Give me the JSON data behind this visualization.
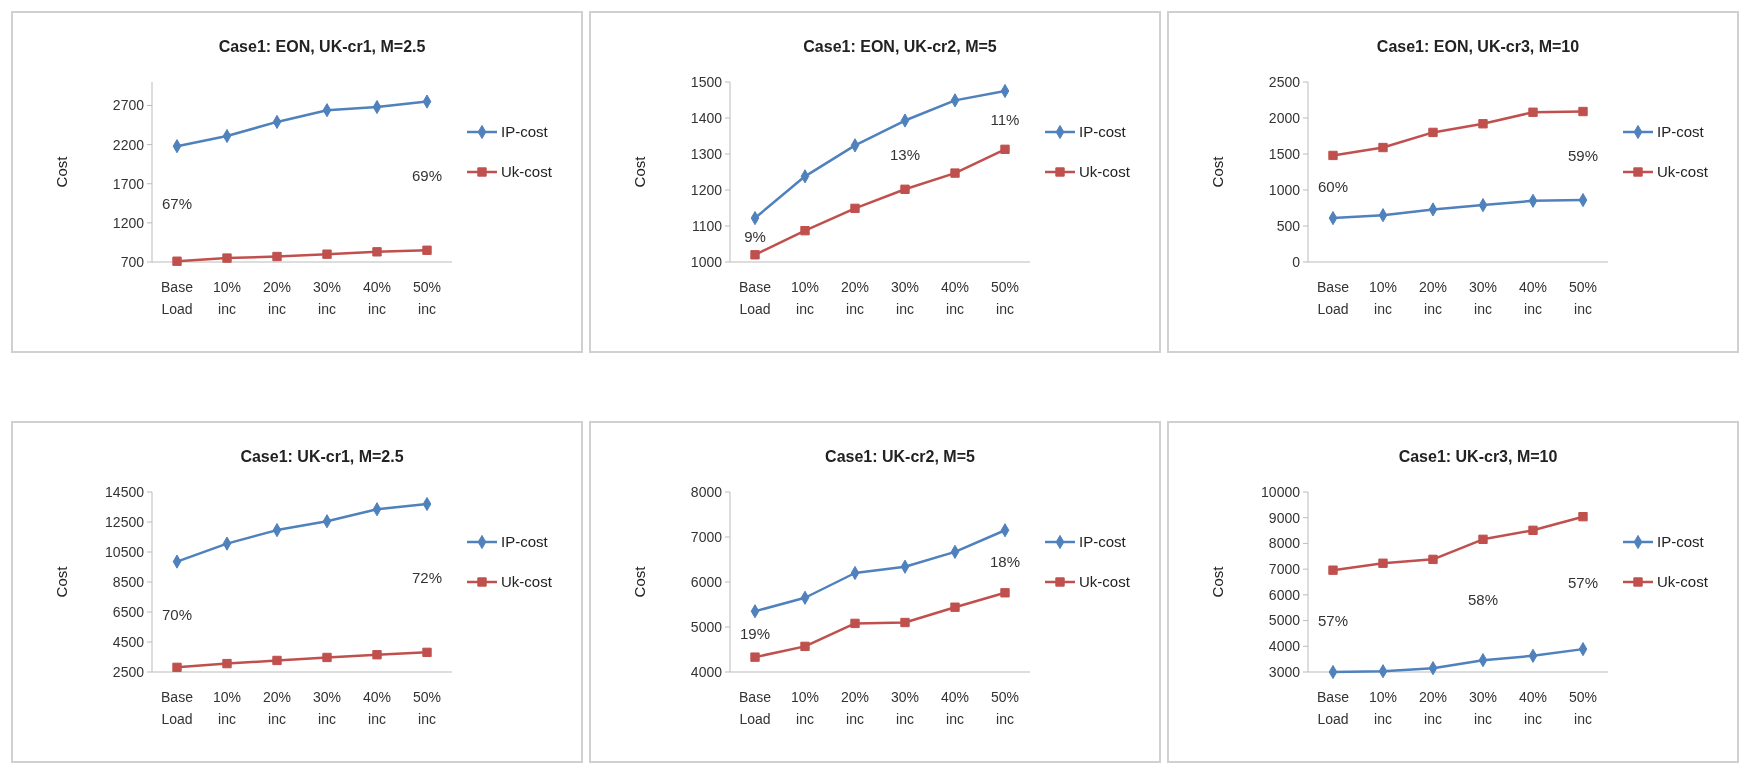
{
  "chart_data": [
    {
      "type": "line",
      "title": "Case1: EON, UK-cr1, M=2.5",
      "ylabel": "Cost",
      "categories": [
        "Base Load",
        "10% inc",
        "20% inc",
        "30% inc",
        "40% inc",
        "50% inc"
      ],
      "ylim": [
        700,
        3000
      ],
      "yticks": [
        700,
        1200,
        1700,
        2200,
        2700
      ],
      "grid": false,
      "legend": "right",
      "series": [
        {
          "name": "IP-cost",
          "color": "#4f81bd",
          "marker": "diamond",
          "values": [
            2180,
            2310,
            2490,
            2640,
            2680,
            2750
          ]
        },
        {
          "name": "Uk-cost",
          "color": "#c0504d",
          "marker": "square",
          "values": [
            710,
            750,
            770,
            800,
            830,
            850
          ]
        }
      ],
      "annotations": [
        "67%",
        "69%"
      ]
    },
    {
      "type": "line",
      "title": "Case1: EON, UK-cr2, M=5",
      "ylabel": "Cost",
      "categories": [
        "Base Load",
        "10% inc",
        "20% inc",
        "30% inc",
        "40% inc",
        "50% inc"
      ],
      "ylim": [
        1000,
        1500
      ],
      "yticks": [
        1000,
        1100,
        1200,
        1300,
        1400,
        1500
      ],
      "grid": false,
      "legend": "right",
      "series": [
        {
          "name": "IP-cost",
          "color": "#4f81bd",
          "marker": "diamond",
          "values": [
            1122,
            1238,
            1324,
            1393,
            1449,
            1475
          ]
        },
        {
          "name": "Uk-cost",
          "color": "#c0504d",
          "marker": "square",
          "values": [
            1020,
            1087,
            1149,
            1202,
            1247,
            1313
          ]
        }
      ],
      "annotations": [
        "9%",
        "13%",
        "11%"
      ]
    },
    {
      "type": "line",
      "title": "Case1: EON, UK-cr3, M=10",
      "ylabel": "Cost",
      "categories": [
        "Base Load",
        "10% inc",
        "20% inc",
        "30% inc",
        "40% inc",
        "50% inc"
      ],
      "ylim": [
        0,
        2500
      ],
      "yticks": [
        0,
        500,
        1000,
        1500,
        2000,
        2500
      ],
      "grid": false,
      "legend": "right",
      "series": [
        {
          "name": "IP-cost",
          "color": "#4f81bd",
          "marker": "diamond",
          "values": [
            610,
            650,
            730,
            790,
            850,
            860
          ]
        },
        {
          "name": "Uk-cost",
          "color": "#c0504d",
          "marker": "square",
          "values": [
            1480,
            1590,
            1800,
            1920,
            2080,
            2090
          ]
        }
      ],
      "annotations": [
        "60%",
        "59%"
      ]
    },
    {
      "type": "line",
      "title": "Case1: UK-cr1, M=2.5",
      "ylabel": "Cost",
      "categories": [
        "Base Load",
        "10% inc",
        "20% inc",
        "30% inc",
        "40% inc",
        "50% inc"
      ],
      "ylim": [
        2500,
        14500
      ],
      "yticks": [
        2500,
        4500,
        6500,
        8500,
        10500,
        12500,
        14500
      ],
      "grid": false,
      "legend": "right",
      "series": [
        {
          "name": "IP-cost",
          "color": "#4f81bd",
          "marker": "diamond",
          "values": [
            9860,
            11060,
            11960,
            12550,
            13350,
            13700
          ]
        },
        {
          "name": "Uk-cost",
          "color": "#c0504d",
          "marker": "square",
          "values": [
            2810,
            3060,
            3270,
            3470,
            3650,
            3810
          ]
        }
      ],
      "annotations": [
        "70%",
        "72%"
      ]
    },
    {
      "type": "line",
      "title": "Case1: UK-cr2, M=5",
      "ylabel": "Cost",
      "categories": [
        "Base Load",
        "10% inc",
        "20% inc",
        "30% inc",
        "40% inc",
        "50% inc"
      ],
      "ylim": [
        4000,
        8000
      ],
      "yticks": [
        4000,
        5000,
        6000,
        7000,
        8000
      ],
      "grid": false,
      "legend": "right",
      "series": [
        {
          "name": "IP-cost",
          "color": "#4f81bd",
          "marker": "diamond",
          "values": [
            5350,
            5650,
            6200,
            6340,
            6670,
            7150
          ]
        },
        {
          "name": "Uk-cost",
          "color": "#c0504d",
          "marker": "square",
          "values": [
            4330,
            4570,
            5080,
            5100,
            5440,
            5760
          ]
        }
      ],
      "annotations": [
        "19%",
        "18%"
      ]
    },
    {
      "type": "line",
      "title": "Case1: UK-cr3, M=10",
      "ylabel": "Cost",
      "categories": [
        "Base Load",
        "10% inc",
        "20% inc",
        "30% inc",
        "40% inc",
        "50% inc"
      ],
      "ylim": [
        3000,
        10000
      ],
      "yticks": [
        3000,
        4000,
        5000,
        6000,
        7000,
        8000,
        9000,
        10000
      ],
      "grid": false,
      "legend": "right",
      "series": [
        {
          "name": "IP-cost",
          "color": "#4f81bd",
          "marker": "diamond",
          "values": [
            3000,
            3030,
            3150,
            3460,
            3630,
            3890
          ]
        },
        {
          "name": "Uk-cost",
          "color": "#c0504d",
          "marker": "square",
          "values": [
            6960,
            7230,
            7380,
            8160,
            8510,
            9040
          ]
        }
      ],
      "annotations": [
        "57%",
        "58%",
        "57%"
      ]
    }
  ]
}
